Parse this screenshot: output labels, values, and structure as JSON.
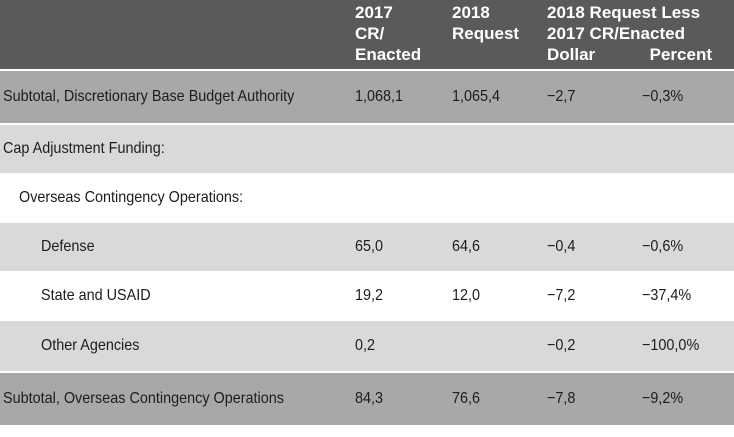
{
  "header": {
    "col_2017": "2017\nCR/\nEnacted",
    "col_2017_lines": [
      "2017",
      "CR/",
      "Enacted"
    ],
    "col_2018_lines": [
      "2018",
      "Request"
    ],
    "col_diff_lines": [
      "2018 Request Less",
      "2017 CR/Enacted"
    ],
    "col_dollar": "Dollar",
    "col_percent": "Percent"
  },
  "rows": [
    {
      "label": "Subtotal, Discretionary Base Budget Authority",
      "v2017": "1,068,1",
      "v2018": "1,065,4",
      "dollar": "−2,7",
      "percent": "−0,3%"
    },
    {
      "label": "Cap Adjustment Funding:",
      "v2017": "",
      "v2018": "",
      "dollar": "",
      "percent": ""
    },
    {
      "label": "Overseas Contingency Operations:",
      "v2017": "",
      "v2018": "",
      "dollar": "",
      "percent": ""
    },
    {
      "label": "Defense",
      "v2017": "65,0",
      "v2018": "64,6",
      "dollar": "−0,4",
      "percent": "−0,6%"
    },
    {
      "label": "State and USAID",
      "v2017": "19,2",
      "v2018": "12,0",
      "dollar": "−7,2",
      "percent": "−37,4%"
    },
    {
      "label": "Other Agencies",
      "v2017": "0,2",
      "v2018": "",
      "dollar": "−0,2",
      "percent": "−100,0%"
    },
    {
      "label": "Subtotal, Overseas Contingency Operations",
      "v2017": "84,3",
      "v2018": "76,6",
      "dollar": "−7,8",
      "percent": "−9,2%"
    }
  ]
}
